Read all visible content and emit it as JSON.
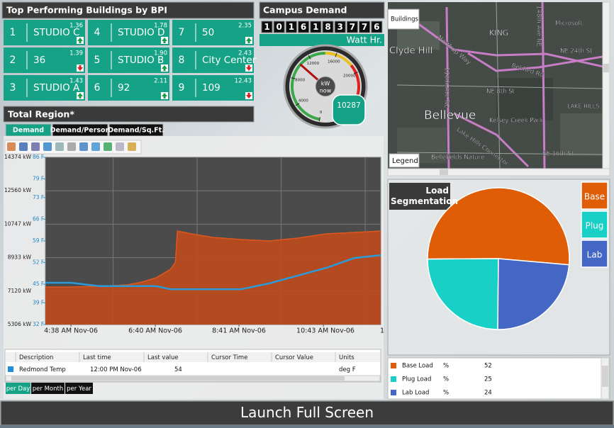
{
  "buildings": {
    "title": "Top Performing Buildings by BPI",
    "tiles": [
      {
        "rank": "1",
        "name": "STUDIO C",
        "bpi": "1.36",
        "trend": "up"
      },
      {
        "rank": "2",
        "name": "36",
        "bpi": "1.39",
        "trend": "down"
      },
      {
        "rank": "3",
        "name": "STUDIO A",
        "bpi": "1.43",
        "trend": "up"
      },
      {
        "rank": "4",
        "name": "STUDIO D",
        "bpi": "1.78",
        "trend": "up"
      },
      {
        "rank": "5",
        "name": "STUDIO B",
        "bpi": "1.90",
        "trend": "up"
      },
      {
        "rank": "6",
        "name": "92",
        "bpi": "2.11",
        "trend": "up"
      },
      {
        "rank": "7",
        "name": "50",
        "bpi": "2.35",
        "trend": "up"
      },
      {
        "rank": "8",
        "name": "City Center",
        "bpi": "2.43",
        "trend": "down"
      },
      {
        "rank": "9",
        "name": "109",
        "bpi": "12.43",
        "trend": "down"
      }
    ]
  },
  "campus": {
    "title": "Campus Demand",
    "digits": [
      "1",
      "0",
      "1",
      "6",
      "1",
      "8",
      "3",
      "7",
      "7",
      "6"
    ],
    "unit": "Watt Hr."
  },
  "chart_data": [
    {
      "type": "line",
      "title": "Total Region*",
      "tabs": [
        "Demand",
        "Demand/Person",
        "Demand/Sq.Ft."
      ],
      "x": [
        241,
        258,
        278,
        319,
        360,
        381,
        401,
        422,
        429,
        432,
        452,
        483,
        524,
        565,
        606,
        647,
        688,
        726
      ],
      "xlim": [
        241,
        726
      ],
      "xticks": [
        {
          "value": 278,
          "label": "4:38 AM Nov-06"
        },
        {
          "value": 400,
          "label": "6:40 AM Nov-06"
        },
        {
          "value": 521,
          "label": "8:41 AM Nov-06"
        },
        {
          "value": 643,
          "label": "10:43 AM Nov-06"
        },
        {
          "value": 764,
          "label": "1"
        }
      ],
      "ylim": [
        5306,
        14374
      ],
      "yticks": [
        {
          "value": 14374,
          "label": "14374 kW"
        },
        {
          "value": 12560,
          "label": "12560 kW"
        },
        {
          "value": 10747,
          "label": "10747 kW"
        },
        {
          "value": 8933,
          "label": "8933 kW"
        },
        {
          "value": 7120,
          "label": "7120 kW"
        },
        {
          "value": 5306,
          "label": "5306 kW"
        }
      ],
      "y2lim": [
        32,
        86
      ],
      "y2ticks": [
        {
          "value": 86,
          "label": "86 F"
        },
        {
          "value": 79,
          "label": "79 F"
        },
        {
          "value": 73,
          "label": "73 F"
        },
        {
          "value": 66,
          "label": "66 F"
        },
        {
          "value": 59,
          "label": "59 F"
        },
        {
          "value": 52,
          "label": "52 F"
        },
        {
          "value": 45,
          "label": "45 F"
        },
        {
          "value": 39,
          "label": "39 F"
        },
        {
          "value": 32,
          "label": "32 F"
        }
      ],
      "grid": true,
      "series": [
        {
          "color": "#c24a1a",
          "fill": true,
          "values": [
            7342,
            7342,
            7342,
            7381,
            7458,
            7611,
            7842,
            8303,
            8687,
            10377,
            10223,
            10031,
            9916,
            9839,
            9993,
            10223,
            10301,
            10377
          ]
        },
        {
          "color": "#2b9ad9",
          "axis": "y2",
          "values": [
            45.5,
            45.5,
            45.5,
            44.4,
            44.4,
            44.4,
            44.4,
            43.4,
            43.4,
            43.4,
            43.4,
            43.4,
            43.4,
            45.3,
            47.8,
            50.3,
            53.5,
            54.4
          ]
        }
      ],
      "table": {
        "columns": [
          "Description",
          "Last time",
          "Last value",
          "Cursor Time",
          "Cursor Value",
          "Units"
        ],
        "row": {
          "description": "Redmond Temp",
          "last_time": "12:00 PM Nov-06",
          "last_value": 54,
          "units": "deg F"
        }
      },
      "periods": [
        "per Day",
        "per Month",
        "per Year"
      ]
    },
    {
      "type": "pie",
      "title": "Load Segmentation",
      "categories": [
        "Base",
        "Plug",
        "Lab"
      ],
      "values": [
        52,
        25,
        24
      ],
      "colors": [
        "#de5d06",
        "#19d0c6",
        "#4466c4"
      ],
      "row_labels": [
        "Base Load",
        "Plug Load",
        "Lab Load"
      ],
      "unit": "%"
    },
    {
      "type": "gauge",
      "value": 10287,
      "unit": "kW",
      "caption": "now",
      "ylim": [
        0,
        24000
      ],
      "yticks": [
        0,
        4000,
        8000,
        12000,
        16000,
        20000,
        24000
      ]
    }
  ],
  "map": {
    "button": "Buildings",
    "legend": "Legend",
    "places": [
      "KING",
      "Clyde Hill",
      "Northup Way",
      "Microsoft",
      "NE 24th St",
      "Bel-Red Rd",
      "NE 8th St",
      "LAKE HILLS",
      "Bellevue",
      "Kelsey Creek Park",
      "Lake Hills Connector",
      "SE 16th St",
      "Bellefields Nature",
      "116th Ave NE",
      "148th Ave NE"
    ]
  },
  "launch": "Launch Full Screen"
}
